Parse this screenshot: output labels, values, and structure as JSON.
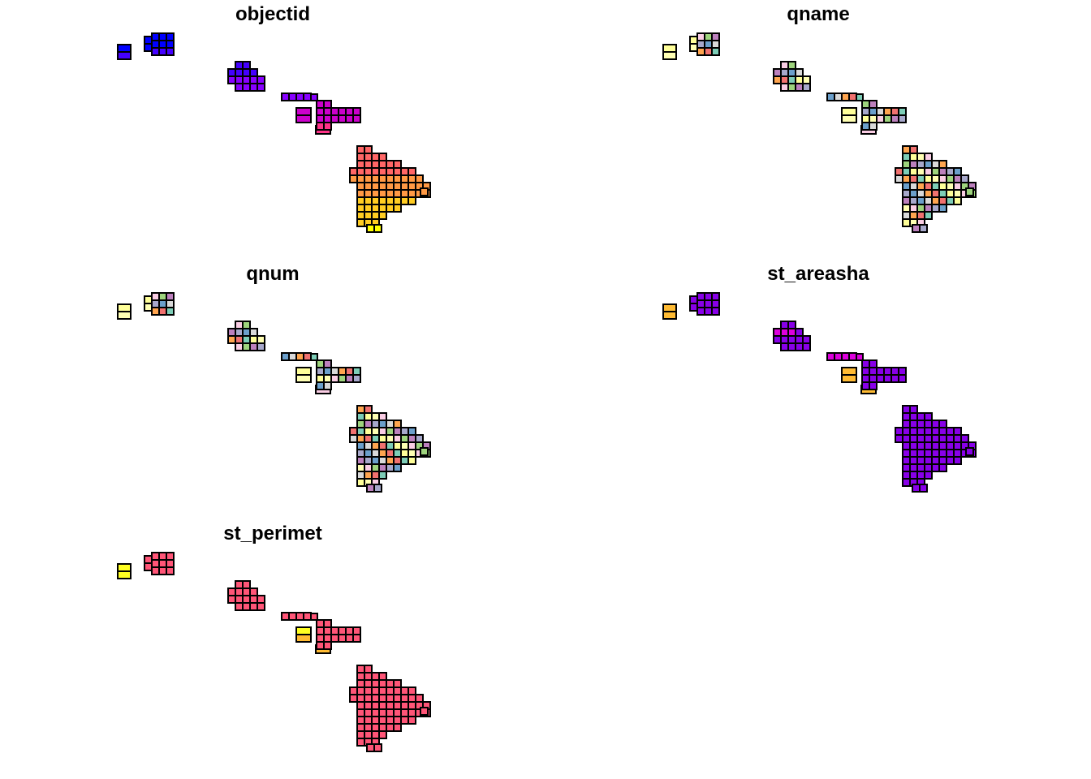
{
  "panels": [
    {
      "title": "objectid",
      "scheme": "gradient"
    },
    {
      "title": "qname",
      "scheme": "categorical"
    },
    {
      "title": "qnum",
      "scheme": "categorical"
    },
    {
      "title": "st_areasha",
      "scheme": "area"
    },
    {
      "title": "st_perimet",
      "scheme": "perimeter"
    }
  ],
  "colors": {
    "gradient": [
      "#0000FF",
      "#4400FF",
      "#8800FF",
      "#CC00CC",
      "#FF3388",
      "#FF6666",
      "#FF9944",
      "#FFCC22",
      "#FFFF00"
    ],
    "categorical": [
      "#F1716F",
      "#6B9FCB",
      "#9ED47D",
      "#FFFF99",
      "#FFA54F",
      "#A7A8CB",
      "#FACDE4",
      "#7DCDB7",
      "#D9D9D9",
      "#BC80BD",
      "#FFFFB3"
    ],
    "area_main": "#8800E8",
    "area_alt": [
      "#FFBB33",
      "#FFFF22",
      "#DD00DD"
    ],
    "perimeter_main": "#FF5577",
    "perimeter_alt": [
      "#FFFF22",
      "#FFBB33"
    ]
  }
}
